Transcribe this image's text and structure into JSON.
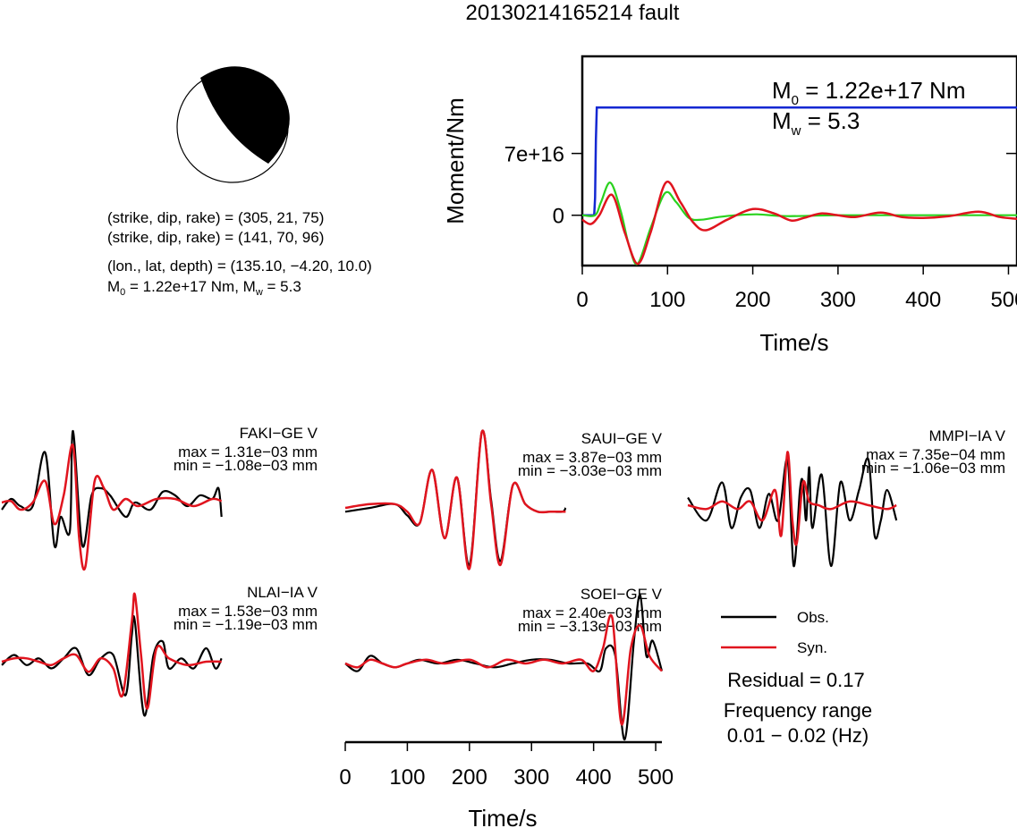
{
  "title": "20130214165214 fault",
  "mechanism": {
    "np1": "(strike, dip, rake) = (305, 21, 75)",
    "np2": "(strike, dip, rake) = (141, 70, 96)",
    "location": "(lon., lat, depth) = (135.10, −4.20, 10.0)",
    "moment_line": {
      "m_prefix": "M",
      "sub0": "0",
      "mid": " = 1.22e+17 Nm, M",
      "subw": "w",
      "end": " = 5.3"
    }
  },
  "colors": {
    "obs": "#000000",
    "syn": "#e0141e",
    "moment": "#1428d2",
    "stf": "#2ad21e"
  },
  "legend": {
    "obs": "Obs.",
    "syn": "Syn.",
    "residual": "Residual = 0.17",
    "freq_title": "Frequency range",
    "freq_value": "0.01 − 0.02 (Hz)"
  },
  "chart_data": [
    {
      "type": "line",
      "name": "source-time-function",
      "xlabel": "Time/s",
      "ylabel": "Moment/Nm",
      "xlim": [
        0,
        510
      ],
      "ylim": [
        -5.7e+16,
        1.8e+17
      ],
      "xticks": [
        "0",
        "100",
        "200",
        "300",
        "400",
        "500"
      ],
      "yticks": [
        {
          "value": 0,
          "label": "0"
        },
        {
          "value": 7e+16,
          "label": "7e+16"
        }
      ],
      "annotation": {
        "m0_sym": "M",
        "m0_sub": "0",
        "m0_val": " = 1.22e+17 Nm",
        "mw_sym": "M",
        "mw_sub": "w",
        "mw_val": " = 5.3"
      },
      "moment_series": {
        "x": [
          0,
          14,
          15,
          16,
          17,
          510
        ],
        "y": [
          0,
          0,
          2e+16,
          8.5e+16,
          1.22e+17,
          1.22e+17
        ]
      },
      "stf_red": {
        "x": [
          0,
          10,
          20,
          35,
          50,
          65,
          80,
          98,
          115,
          130,
          145,
          170,
          200,
          225,
          245,
          260,
          280,
          300,
          320,
          350,
          375,
          400,
          430,
          465,
          490,
          510
        ],
        "y": [
          -5000000000000000.0,
          -1e+16,
          0,
          2.3e+16,
          -2e+16,
          -5.5e+16,
          -2e+16,
          3.7e+16,
          1.5e+16,
          -8000000000000000.0,
          -1.7e+16,
          -5000000000000000.0,
          7000000000000000.0,
          2000000000000000.0,
          -6000000000000000.0,
          -3000000000000000.0,
          2000000000000000.0,
          0,
          -2000000000000000.0,
          3000000000000000.0,
          -2000000000000000.0,
          -3000000000000000.0,
          -1000000000000000.0,
          4000000000000000.0,
          -2000000000000000.0,
          -4000000000000000.0
        ]
      },
      "stf_green": {
        "x": [
          0,
          15,
          22,
          33,
          45,
          55,
          65,
          80,
          97,
          110,
          125,
          140,
          160,
          180,
          205,
          240,
          300,
          400,
          510
        ],
        "y": [
          0,
          0,
          1.5e+16,
          3.7e+16,
          5000000000000000.0,
          -3.5e+16,
          -5.5e+16,
          -1.5e+16,
          2.5e+16,
          1.5e+16,
          -3000000000000000.0,
          -5000000000000000.0,
          -2000000000000000.0,
          0,
          1000000000000000.0,
          -1000000000000000.0,
          0,
          0,
          0
        ]
      }
    },
    {
      "type": "line",
      "name": "waveforms",
      "xlabel": "Time/s",
      "xlim": [
        0,
        510
      ],
      "xticks": [
        "0",
        "100",
        "200",
        "300",
        "400",
        "500"
      ],
      "stations": [
        {
          "label": "FAKI−GE V",
          "max": "max = 1.31e−03 mm",
          "min": "min = −1.08e−03 mm",
          "obs": {
            "x": [
              0,
              15,
              30,
              50,
              70,
              85,
              95,
              110,
              115,
              130,
              145,
              160,
              175,
              200,
              215,
              240,
              260,
              280,
              300,
              320,
              340,
              350,
              355
            ],
            "y": [
              -0.1,
              0.05,
              -0.05,
              -0.05,
              0.7,
              -0.6,
              -0.2,
              -0.4,
              1.0,
              -0.6,
              0.1,
              0.2,
              0.1,
              -0.2,
              0,
              -0.1,
              0.15,
              0.1,
              -0.05,
              0.1,
              0.05,
              0.2,
              -0.2
            ]
          },
          "syn": {
            "x": [
              0,
              15,
              30,
              50,
              70,
              85,
              100,
              115,
              125,
              135,
              150,
              165,
              180,
              200,
              220,
              250,
              280,
              310,
              340,
              355
            ],
            "y": [
              0,
              0.02,
              -0.1,
              0,
              0.3,
              -0.3,
              0.1,
              0.8,
              -0.5,
              -0.9,
              0.3,
              0.2,
              -0.1,
              0.05,
              -0.05,
              0.05,
              0.05,
              -0.05,
              0.05,
              0.02
            ]
          }
        },
        {
          "label": "SAUI−GE V",
          "max": "max = 3.87e−03 mm",
          "min": "min = −3.03e−03 mm",
          "obs": {
            "x": [
              0,
              40,
              80,
              100,
              120,
              140,
              160,
              180,
              200,
              220,
              235,
              250,
              270,
              290,
              310,
              330,
              350,
              355
            ],
            "y": [
              -0.05,
              0,
              0.05,
              -0.1,
              -0.2,
              0.5,
              -0.4,
              0.4,
              -0.75,
              1.0,
              0.1,
              -0.7,
              0.3,
              0.05,
              -0.05,
              -0.05,
              -0.05,
              0
            ]
          },
          "syn": {
            "x": [
              0,
              40,
              80,
              100,
              120,
              140,
              160,
              180,
              200,
              220,
              235,
              250,
              270,
              290,
              310,
              330,
              350,
              355
            ],
            "y": [
              0,
              0.05,
              0.05,
              -0.05,
              -0.2,
              0.5,
              -0.4,
              0.4,
              -0.8,
              1.0,
              0.05,
              -0.75,
              0.3,
              0.05,
              -0.05,
              -0.05,
              -0.05,
              -0.05
            ]
          }
        },
        {
          "label": "MMPI−IA V",
          "max": "max = 7.35e−04 mm",
          "min": "min = −1.06e−03 mm",
          "obs": {
            "x": [
              0,
              30,
              55,
              70,
              85,
              100,
              115,
              130,
              145,
              160,
              170,
              180,
              185,
              190,
              195,
              200,
              215,
              230,
              245,
              260,
              275,
              290,
              300,
              310,
              320,
              335
            ],
            "y": [
              0.1,
              -0.2,
              0.3,
              -0.3,
              0.1,
              0.2,
              -0.3,
              0.15,
              -0.2,
              0.6,
              -0.8,
              0.2,
              0.3,
              -0.2,
              0.5,
              -0.3,
              0.4,
              -0.8,
              0.3,
              -0.2,
              0.2,
              0.6,
              -0.4,
              -0.2,
              0.2,
              -0.2
            ]
          },
          "syn": {
            "x": [
              0,
              30,
              55,
              80,
              100,
              120,
              140,
              150,
              160,
              168,
              175,
              185,
              195,
              210,
              230,
              260,
              290,
              320,
              335
            ],
            "y": [
              0,
              -0.05,
              0.05,
              -0.05,
              0.05,
              -0.2,
              0.2,
              -0.4,
              0.7,
              -0.2,
              -0.5,
              0.3,
              0.05,
              0,
              -0.05,
              0.05,
              0,
              -0.05,
              0
            ]
          }
        },
        {
          "label": "NLAI−IA V",
          "max": "max = 1.53e−03 mm",
          "min": "min = −1.19e−03 mm",
          "obs": {
            "x": [
              0,
              20,
              40,
              60,
              80,
              100,
              120,
              140,
              160,
              180,
              200,
              210,
              215,
              230,
              245,
              260,
              270,
              290,
              310,
              330,
              345,
              355
            ],
            "y": [
              -0.05,
              0.1,
              -0.05,
              0.05,
              -0.1,
              0.05,
              0.2,
              -0.2,
              0.05,
              0.1,
              -0.5,
              0.4,
              0.6,
              -0.8,
              0.1,
              0.3,
              -0.1,
              0.05,
              -0.1,
              0.2,
              -0.1,
              0.05
            ]
          },
          "syn": {
            "x": [
              0,
              20,
              40,
              60,
              80,
              100,
              120,
              140,
              160,
              180,
              195,
              210,
              215,
              225,
              235,
              250,
              270,
              300,
              330,
              355
            ],
            "y": [
              0,
              0.05,
              0.05,
              0,
              -0.05,
              0.05,
              0.1,
              -0.15,
              0.05,
              -0.1,
              -0.5,
              0.6,
              1.0,
              0.1,
              -0.7,
              0.2,
              0.05,
              -0.05,
              0,
              0
            ]
          }
        },
        {
          "label": "SOEI−GE V",
          "max": "max = 2.40e−03 mm",
          "min": "min = −3.13e−03 mm",
          "obs": {
            "x": [
              0,
              20,
              40,
              60,
              80,
              100,
              120,
              150,
              180,
              210,
              240,
              270,
              300,
              330,
              360,
              390,
              410,
              420,
              435,
              450,
              465,
              475,
              485,
              495,
              510
            ],
            "y": [
              0,
              -0.1,
              0.1,
              0,
              -0.05,
              0,
              0.05,
              0,
              0.05,
              0,
              -0.05,
              0,
              0.05,
              0.05,
              0,
              0,
              -0.1,
              0.2,
              0.1,
              -1.0,
              0.3,
              0.9,
              0.1,
              0.3,
              -0.1
            ]
          },
          "syn": {
            "x": [
              0,
              20,
              40,
              60,
              80,
              100,
              130,
              160,
              200,
              230,
              260,
              290,
              320,
              350,
              380,
              400,
              415,
              430,
              445,
              460,
              475,
              490,
              510
            ],
            "y": [
              0,
              -0.05,
              0.05,
              0,
              -0.05,
              0,
              0.05,
              0,
              0.05,
              -0.05,
              0.05,
              0,
              0.05,
              0,
              0.05,
              -0.1,
              0.2,
              0.6,
              -0.8,
              0.2,
              0.5,
              0.1,
              -0.1
            ]
          }
        }
      ]
    }
  ]
}
